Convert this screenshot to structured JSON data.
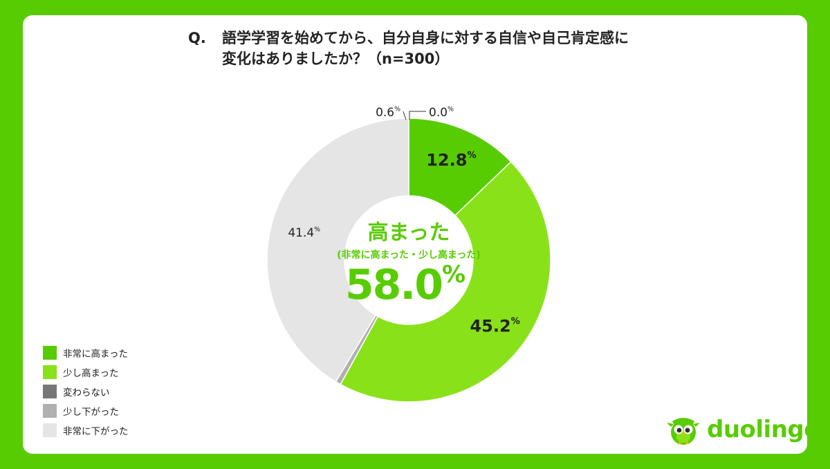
{
  "question": {
    "prefix": "Q.",
    "line1": "語学学習を始めてから、自分自身に対する自信や自己肯定感に",
    "line2": "変化はありましたか？（n=300）"
  },
  "chart_data": {
    "type": "pie",
    "donut": true,
    "categories": [
      "非常に高まった",
      "少し高まった",
      "変わらない",
      "少し下がった",
      "非常に下がった"
    ],
    "values": [
      12.8,
      45.2,
      0.0,
      0.6,
      41.4
    ],
    "labels": [
      "12.8",
      "45.2",
      "0.0",
      "0.6",
      "41.4"
    ],
    "unit": "%",
    "colors": [
      "#58cc02",
      "#89e219",
      "#777777",
      "#b0b0b0",
      "#e5e5e5"
    ],
    "center": {
      "title": "高まった",
      "subtitle": "(非常に高まった・少し高まった)",
      "value": "58.0",
      "unit": "%",
      "color": "#58cc02"
    },
    "legend_position": "bottom-left"
  },
  "legend": {
    "items": [
      {
        "label": "非常に高まった",
        "color": "#58cc02"
      },
      {
        "label": "少し高まった",
        "color": "#89e219"
      },
      {
        "label": "変わらない",
        "color": "#777777"
      },
      {
        "label": "少し下がった",
        "color": "#b0b0b0"
      },
      {
        "label": "非常に下がった",
        "color": "#e5e5e5"
      }
    ]
  },
  "brand": {
    "name": "duolingo",
    "color": "#58cc02",
    "icon": "owl-mascot-icon"
  }
}
